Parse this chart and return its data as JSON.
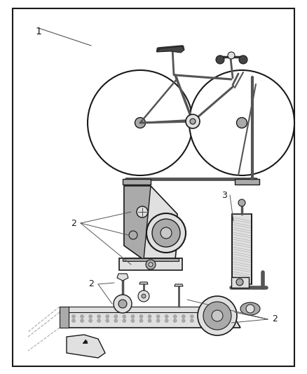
{
  "background_color": "#ffffff",
  "border_color": "#1a1a1a",
  "text_color": "#1a1a1a",
  "line_color": "#1a1a1a",
  "gray_fill": "#c8c8c8",
  "light_gray": "#e0e0e0",
  "mid_gray": "#aaaaaa",
  "dark_gray": "#555555",
  "label1_text": "1",
  "label2_text": "2",
  "label3_text": "3",
  "fig_width": 4.38,
  "fig_height": 5.33,
  "dpi": 100
}
